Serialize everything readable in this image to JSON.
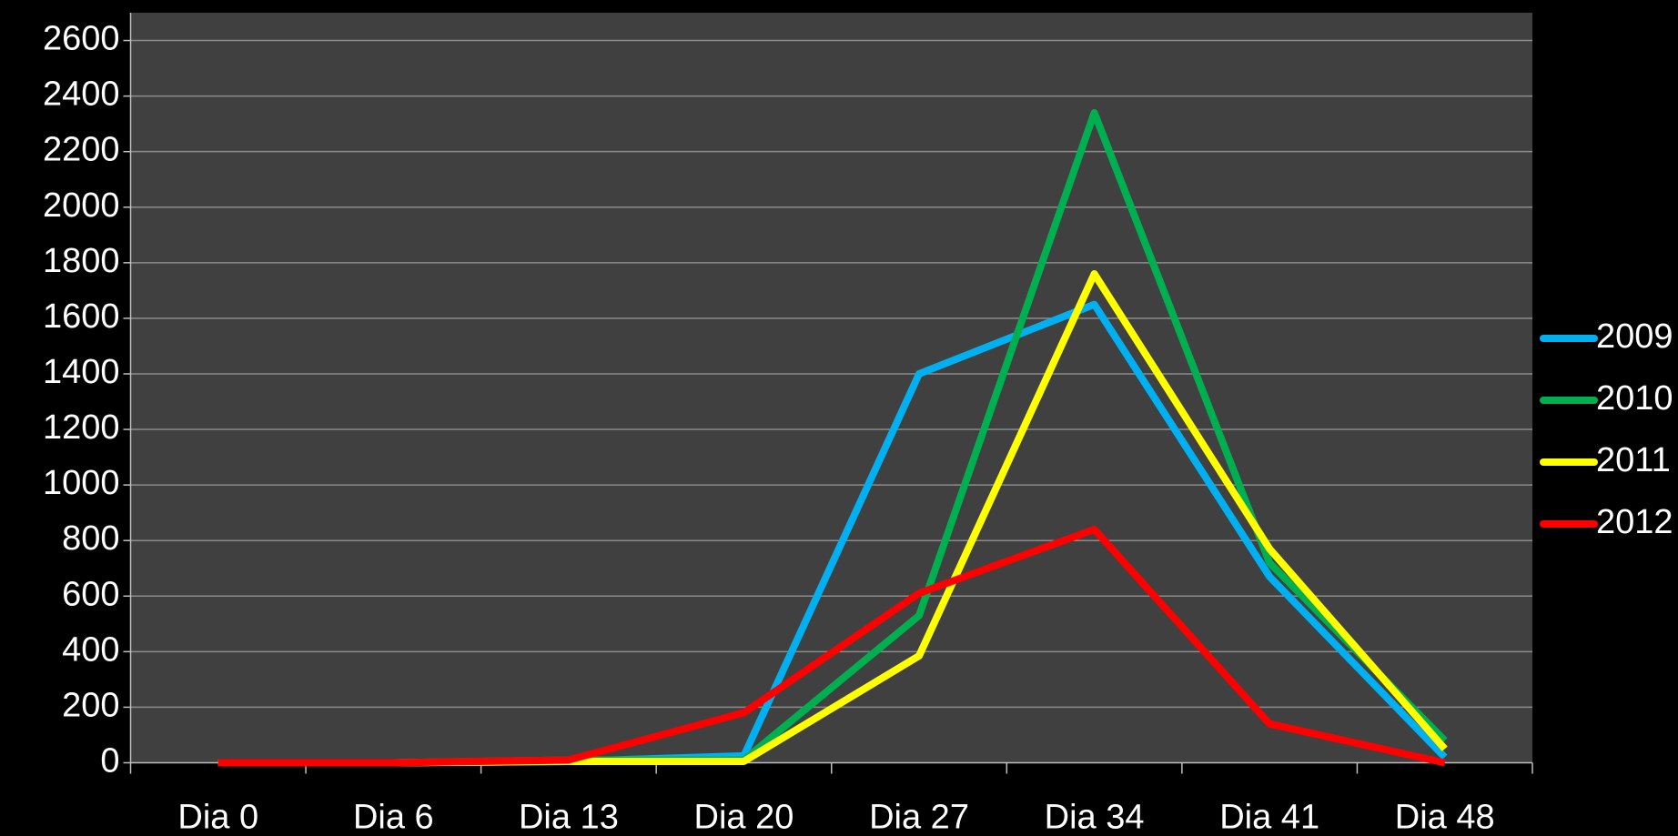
{
  "chart_data": {
    "type": "line",
    "categories": [
      "Dia 0",
      "Dia 6",
      "Dia 13",
      "Dia 20",
      "Dia 27",
      "Dia 34",
      "Dia 41",
      "Dia 48"
    ],
    "series": [
      {
        "name": "2009",
        "color": "#00b0f0",
        "values": [
          0,
          0,
          5,
          25,
          1400,
          1650,
          670,
          20
        ]
      },
      {
        "name": "2010",
        "color": "#00b050",
        "values": [
          0,
          0,
          10,
          10,
          530,
          2340,
          720,
          80
        ]
      },
      {
        "name": "2011",
        "color": "#ffff00",
        "values": [
          0,
          0,
          5,
          5,
          385,
          1760,
          770,
          50
        ]
      },
      {
        "name": "2012",
        "color": "#ff0000",
        "values": [
          0,
          0,
          10,
          180,
          610,
          840,
          140,
          0
        ]
      }
    ],
    "ylim": [
      0,
      2700
    ],
    "yticks": [
      0,
      200,
      400,
      600,
      800,
      1000,
      1200,
      1400,
      1600,
      1800,
      2000,
      2200,
      2400,
      2600
    ],
    "grid": true,
    "legend": "right"
  }
}
